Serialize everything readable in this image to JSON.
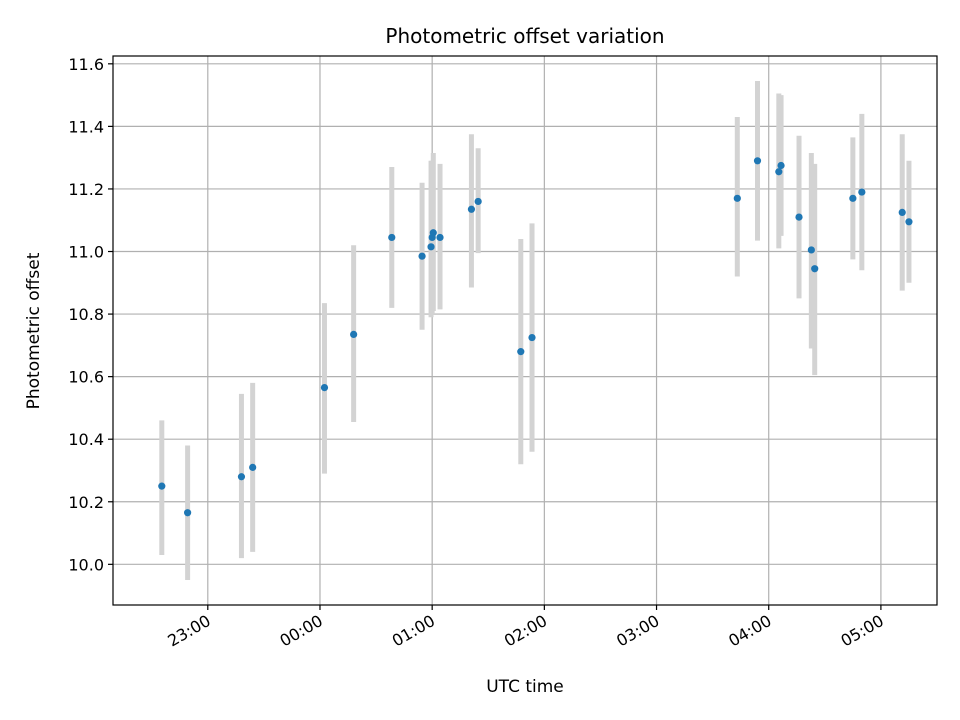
{
  "chart_data": {
    "type": "scatter",
    "title": "Photometric offset variation",
    "xlabel": "UTC time",
    "ylabel": "Photometric offset",
    "x_unit": "hours relative to 00:00 UTC",
    "xlim": [
      -1.845,
      5.5
    ],
    "ylim": [
      9.87,
      11.625
    ],
    "xticks": [
      {
        "value": -1,
        "label": "23:00"
      },
      {
        "value": 0,
        "label": "00:00"
      },
      {
        "value": 1,
        "label": "01:00"
      },
      {
        "value": 2,
        "label": "02:00"
      },
      {
        "value": 3,
        "label": "03:00"
      },
      {
        "value": 4,
        "label": "04:00"
      },
      {
        "value": 5,
        "label": "05:00"
      }
    ],
    "yticks": [
      {
        "value": 10.0,
        "label": "10.0"
      },
      {
        "value": 10.2,
        "label": "10.2"
      },
      {
        "value": 10.4,
        "label": "10.4"
      },
      {
        "value": 10.6,
        "label": "10.6"
      },
      {
        "value": 10.8,
        "label": "10.8"
      },
      {
        "value": 11.0,
        "label": "11.0"
      },
      {
        "value": 11.2,
        "label": "11.2"
      },
      {
        "value": 11.4,
        "label": "11.4"
      },
      {
        "value": 11.6,
        "label": "11.6"
      }
    ],
    "grid": true,
    "marker_color": "#1f77b4",
    "errorbar_color": "#d3d3d3",
    "points": [
      {
        "x": -1.41,
        "y": 10.25,
        "ylow": 10.03,
        "yhigh": 10.46
      },
      {
        "x": -1.18,
        "y": 10.165,
        "ylow": 9.95,
        "yhigh": 10.38
      },
      {
        "x": -0.7,
        "y": 10.28,
        "ylow": 10.02,
        "yhigh": 10.545
      },
      {
        "x": -0.6,
        "y": 10.31,
        "ylow": 10.04,
        "yhigh": 10.58
      },
      {
        "x": 0.04,
        "y": 10.565,
        "ylow": 10.29,
        "yhigh": 10.835
      },
      {
        "x": 0.3,
        "y": 10.735,
        "ylow": 10.455,
        "yhigh": 11.02
      },
      {
        "x": 0.64,
        "y": 11.045,
        "ylow": 10.82,
        "yhigh": 11.27
      },
      {
        "x": 0.91,
        "y": 10.985,
        "ylow": 10.75,
        "yhigh": 11.22
      },
      {
        "x": 0.99,
        "y": 11.015,
        "ylow": 10.79,
        "yhigh": 11.29
      },
      {
        "x": 1.0,
        "y": 11.045,
        "ylow": 10.8,
        "yhigh": 11.29
      },
      {
        "x": 1.01,
        "y": 11.06,
        "ylow": 10.81,
        "yhigh": 11.315
      },
      {
        "x": 1.07,
        "y": 11.045,
        "ylow": 10.815,
        "yhigh": 11.28
      },
      {
        "x": 1.35,
        "y": 11.135,
        "ylow": 10.885,
        "yhigh": 11.375
      },
      {
        "x": 1.41,
        "y": 11.16,
        "ylow": 10.995,
        "yhigh": 11.33
      },
      {
        "x": 1.79,
        "y": 10.68,
        "ylow": 10.32,
        "yhigh": 11.04
      },
      {
        "x": 1.89,
        "y": 10.725,
        "ylow": 10.36,
        "yhigh": 11.09
      },
      {
        "x": 3.72,
        "y": 11.17,
        "ylow": 10.92,
        "yhigh": 11.43
      },
      {
        "x": 3.9,
        "y": 11.29,
        "ylow": 11.035,
        "yhigh": 11.545
      },
      {
        "x": 4.09,
        "y": 11.255,
        "ylow": 11.01,
        "yhigh": 11.505
      },
      {
        "x": 4.11,
        "y": 11.275,
        "ylow": 11.05,
        "yhigh": 11.5
      },
      {
        "x": 4.27,
        "y": 11.11,
        "ylow": 10.85,
        "yhigh": 11.37
      },
      {
        "x": 4.38,
        "y": 11.005,
        "ylow": 10.69,
        "yhigh": 11.315
      },
      {
        "x": 4.41,
        "y": 10.945,
        "ylow": 10.605,
        "yhigh": 11.28
      },
      {
        "x": 4.75,
        "y": 11.17,
        "ylow": 10.975,
        "yhigh": 11.365
      },
      {
        "x": 4.83,
        "y": 11.19,
        "ylow": 10.94,
        "yhigh": 11.44
      },
      {
        "x": 5.19,
        "y": 11.125,
        "ylow": 10.875,
        "yhigh": 11.375
      },
      {
        "x": 5.25,
        "y": 11.095,
        "ylow": 10.9,
        "yhigh": 11.29
      }
    ]
  }
}
